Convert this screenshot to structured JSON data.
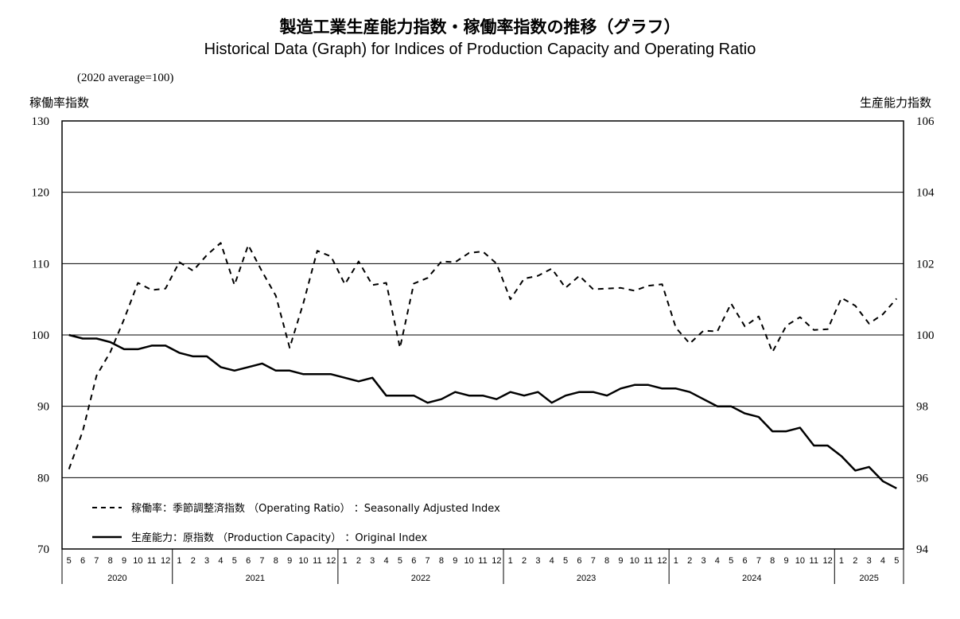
{
  "chart_data": {
    "type": "line",
    "title": "製造工業生産能力指数・稼働率指数の推移（グラフ）",
    "subtitle": "Historical Data (Graph) for Indices of Production Capacity and Operating Ratio",
    "base_note": "(2020 average=100)",
    "left_axis": {
      "label": "稼働率指数",
      "range": [
        70,
        130
      ],
      "ticks": [
        "70",
        "80",
        "90",
        "100",
        "110",
        "120",
        "130"
      ]
    },
    "right_axis": {
      "label": "生産能力指数",
      "range": [
        94,
        106
      ],
      "ticks": [
        "94",
        "96",
        "98",
        "100",
        "102",
        "104",
        "106"
      ]
    },
    "grid": "horizontal",
    "legend_placement": "bottom-left",
    "month_ticks": [
      "5",
      "6",
      "7",
      "8",
      "9",
      "10",
      "11",
      "12",
      "1",
      "2",
      "3",
      "4",
      "5",
      "6",
      "7",
      "8",
      "9",
      "10",
      "11",
      "12",
      "1",
      "2",
      "3",
      "4",
      "5",
      "6",
      "7",
      "8",
      "9",
      "10",
      "11",
      "12",
      "1",
      "2",
      "3",
      "4",
      "5",
      "6",
      "7",
      "8",
      "9",
      "10",
      "11",
      "12",
      "1",
      "2",
      "3",
      "4",
      "5",
      "6",
      "7",
      "8",
      "9",
      "10",
      "11",
      "12",
      "1",
      "2",
      "3",
      "4",
      "5"
    ],
    "years": [
      {
        "label": "2020",
        "months": 8
      },
      {
        "label": "2021",
        "months": 12
      },
      {
        "label": "2022",
        "months": 12
      },
      {
        "label": "2023",
        "months": 12
      },
      {
        "label": "2024",
        "months": 12
      },
      {
        "label": "2025",
        "months": 5
      }
    ],
    "series": [
      {
        "name": "稼働率：季節調整済指数 （Operating Ratio） ：Seasonally Adjusted Index",
        "axis": "left",
        "style": "dashed",
        "values": [
          81.2,
          86.5,
          94.3,
          97.6,
          102.2,
          107.3,
          106.3,
          106.5,
          110.2,
          109.0,
          111.2,
          112.9,
          107.0,
          112.6,
          108.9,
          105.5,
          98.2,
          104.5,
          111.8,
          111.0,
          107.1,
          110.3,
          107.0,
          107.3,
          98.2,
          107.2,
          108.0,
          110.3,
          110.2,
          111.5,
          111.7,
          110.0,
          105.0,
          107.9,
          108.3,
          109.3,
          106.6,
          108.3,
          106.4,
          106.5,
          106.6,
          106.2,
          106.9,
          107.1,
          101.0,
          98.8,
          100.6,
          100.5,
          104.4,
          101.2,
          102.6,
          97.6,
          101.3,
          102.5,
          100.7,
          100.8,
          105.2,
          104.1,
          101.6,
          102.9,
          105.1
        ]
      },
      {
        "name": "生産能力：原指数 （Production Capacity） ：Original Index",
        "axis": "right",
        "style": "solid",
        "values": [
          100.0,
          99.9,
          99.9,
          99.8,
          99.6,
          99.6,
          99.7,
          99.7,
          99.5,
          99.4,
          99.4,
          99.1,
          99.0,
          99.1,
          99.2,
          99.0,
          99.0,
          98.9,
          98.9,
          98.9,
          98.8,
          98.7,
          98.8,
          98.3,
          98.3,
          98.3,
          98.1,
          98.2,
          98.4,
          98.3,
          98.3,
          98.2,
          98.4,
          98.3,
          98.4,
          98.1,
          98.3,
          98.4,
          98.4,
          98.3,
          98.5,
          98.6,
          98.6,
          98.5,
          98.5,
          98.4,
          98.2,
          98.0,
          98.0,
          97.8,
          97.7,
          97.3,
          97.3,
          97.4,
          96.9,
          96.9,
          96.6,
          96.2,
          96.3,
          95.9,
          95.7
        ]
      }
    ]
  }
}
